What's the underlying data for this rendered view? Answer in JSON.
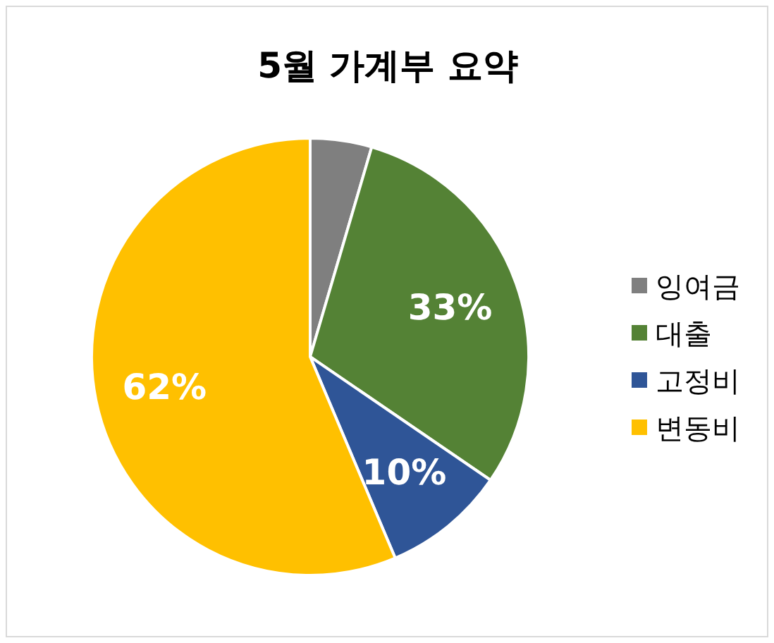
{
  "chart_data": {
    "type": "pie",
    "title": "5월 가계부 요약",
    "categories": [
      "잉여금",
      "대출",
      "고정비",
      "변동비"
    ],
    "values": [
      5,
      33,
      10,
      62
    ],
    "colors": [
      "#7f7f7f",
      "#548235",
      "#2f5597",
      "#ffc000"
    ],
    "value_labels": [
      null,
      "33%",
      "10%",
      "62%"
    ],
    "legend": "right"
  }
}
